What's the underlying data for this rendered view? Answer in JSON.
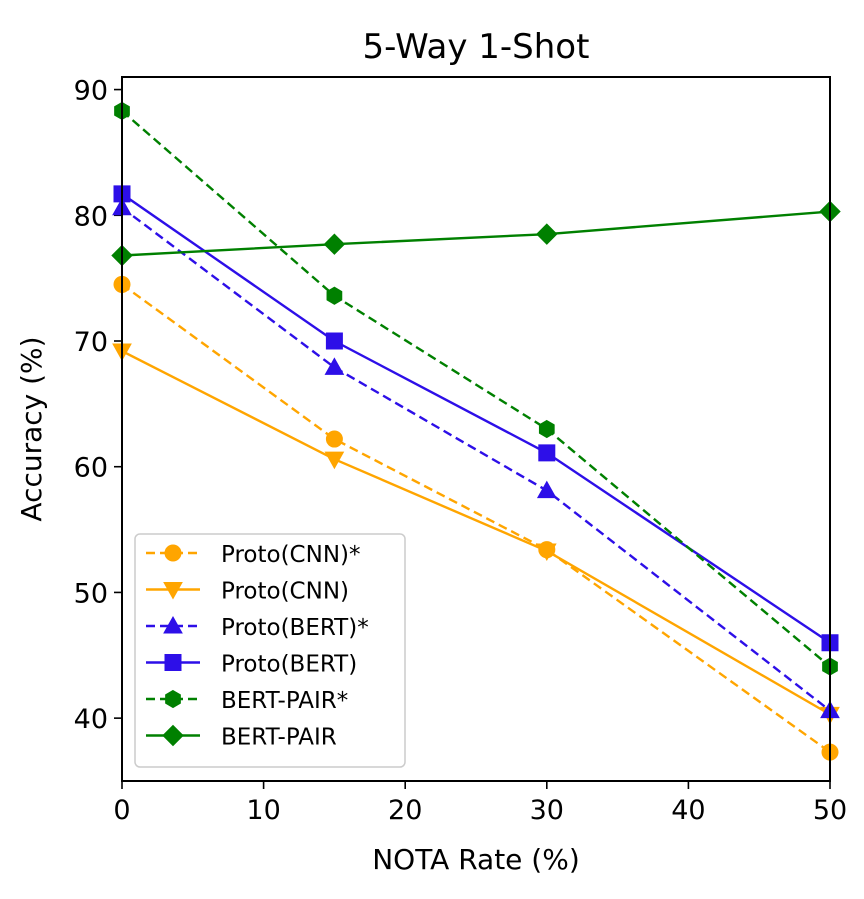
{
  "chart_data": {
    "type": "line",
    "title": "5-Way 1-Shot",
    "xlabel": "NOTA Rate (%)",
    "ylabel": "Accuracy (%)",
    "xlim": [
      0,
      50
    ],
    "ylim": [
      35,
      91
    ],
    "xticks": [
      0,
      10,
      20,
      30,
      40,
      50
    ],
    "xtick_labels": [
      "0",
      "10",
      "20",
      "30",
      "40",
      "50"
    ],
    "yticks": [
      40,
      50,
      60,
      70,
      80,
      90
    ],
    "ytick_labels": [
      "40",
      "50",
      "60",
      "70",
      "80",
      "90"
    ],
    "grid": false,
    "legend_position": "lower-left",
    "x": [
      0,
      15,
      30,
      50
    ],
    "series": [
      {
        "name": "Proto(CNN)*",
        "values": [
          74.5,
          62.2,
          53.4,
          37.3
        ],
        "color": "#FFA500",
        "dash": "dashed",
        "marker": "circle"
      },
      {
        "name": "Proto(CNN)",
        "values": [
          69.2,
          60.6,
          53.3,
          40.3
        ],
        "color": "#FFA500",
        "dash": "solid",
        "marker": "triangle-down"
      },
      {
        "name": "Proto(BERT)*",
        "values": [
          80.6,
          67.9,
          58.1,
          40.6
        ],
        "color": "#2D0FE8",
        "dash": "dashed",
        "marker": "triangle-up"
      },
      {
        "name": "Proto(BERT)",
        "values": [
          81.7,
          70.0,
          61.1,
          46.0
        ],
        "color": "#2D0FE8",
        "dash": "solid",
        "marker": "square"
      },
      {
        "name": "BERT-PAIR*",
        "values": [
          88.3,
          73.6,
          63.0,
          44.1
        ],
        "color": "#008000",
        "dash": "dashed",
        "marker": "hexagon"
      },
      {
        "name": "BERT-PAIR",
        "values": [
          76.8,
          77.7,
          78.5,
          80.3
        ],
        "color": "#008000",
        "dash": "solid",
        "marker": "diamond"
      }
    ]
  }
}
